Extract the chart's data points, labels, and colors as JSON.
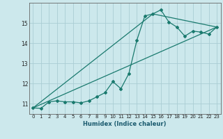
{
  "xlabel": "Humidex (Indice chaleur)",
  "xlim": [
    -0.5,
    23.5
  ],
  "ylim": [
    10.5,
    16.0
  ],
  "yticks": [
    11,
    12,
    13,
    14,
    15
  ],
  "xticks": [
    0,
    1,
    2,
    3,
    4,
    5,
    6,
    7,
    8,
    9,
    10,
    11,
    12,
    13,
    14,
    15,
    16,
    17,
    18,
    19,
    20,
    21,
    22,
    23
  ],
  "background_color": "#cce8ec",
  "line_color": "#1a7a6e",
  "grid_color": "#aacdd4",
  "line1_x": [
    0,
    1,
    2,
    3,
    4,
    5,
    6,
    7,
    8,
    9,
    10,
    11,
    12,
    13,
    14,
    15,
    16,
    17,
    18,
    19,
    20,
    21,
    22,
    23
  ],
  "line1_y": [
    10.8,
    10.78,
    11.1,
    11.15,
    11.1,
    11.1,
    11.05,
    11.15,
    11.35,
    11.55,
    12.1,
    11.75,
    12.5,
    14.15,
    15.35,
    15.45,
    15.65,
    15.05,
    14.8,
    14.35,
    14.6,
    14.55,
    14.45,
    14.8
  ],
  "line2_x": [
    0,
    15,
    23
  ],
  "line2_y": [
    10.8,
    15.45,
    14.8
  ],
  "line3_x": [
    0,
    23
  ],
  "line3_y": [
    10.8,
    14.8
  ],
  "xlabel_fontsize": 6,
  "xlabel_color": "#1a5a6e",
  "tick_fontsize": 5,
  "ytick_fontsize": 5.5
}
